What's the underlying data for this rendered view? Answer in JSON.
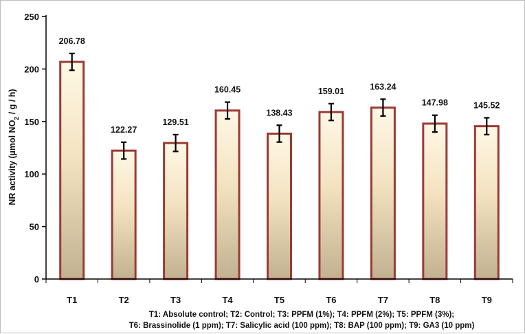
{
  "chart_data": {
    "type": "bar",
    "categories": [
      "T1",
      "T2",
      "T3",
      "T4",
      "T5",
      "T6",
      "T7",
      "T8",
      "T9"
    ],
    "values": [
      206.78,
      122.27,
      129.51,
      160.45,
      138.43,
      159.01,
      163.24,
      147.98,
      145.52
    ],
    "value_labels": [
      "206.78",
      "122.27",
      "129.51",
      "160.45",
      "138.43",
      "159.01",
      "163.24",
      "147.98",
      "145.52"
    ],
    "error": [
      8,
      8,
      8,
      8,
      8,
      8,
      8,
      8,
      8
    ],
    "ylabel": {
      "prefix": "NR activity (µmol NO",
      "subscript": "2",
      "suffix": " / g / h)"
    },
    "ylim": [
      0,
      250
    ],
    "yticks": [
      0,
      50,
      100,
      150,
      200,
      250
    ],
    "grid": false,
    "legend": "none",
    "notes": [
      "T1: Absolute control; T2: Control; T3: PPFM (1%); T4: PPFM (2%); T5: PPFM (3%);",
      "T6: Brassinolide (1 ppm); T7: Salicylic acid (100 ppm); T8: BAP (100 ppm); T9: GA3 (10 ppm)"
    ],
    "colors": {
      "bar_border": "#9b3a35",
      "bar_top": "#fff8e6",
      "bar_mid": "#f3e2c0",
      "bar_bottom": "#c2b190",
      "error_bar": "#000000",
      "axis": "#000000"
    }
  }
}
